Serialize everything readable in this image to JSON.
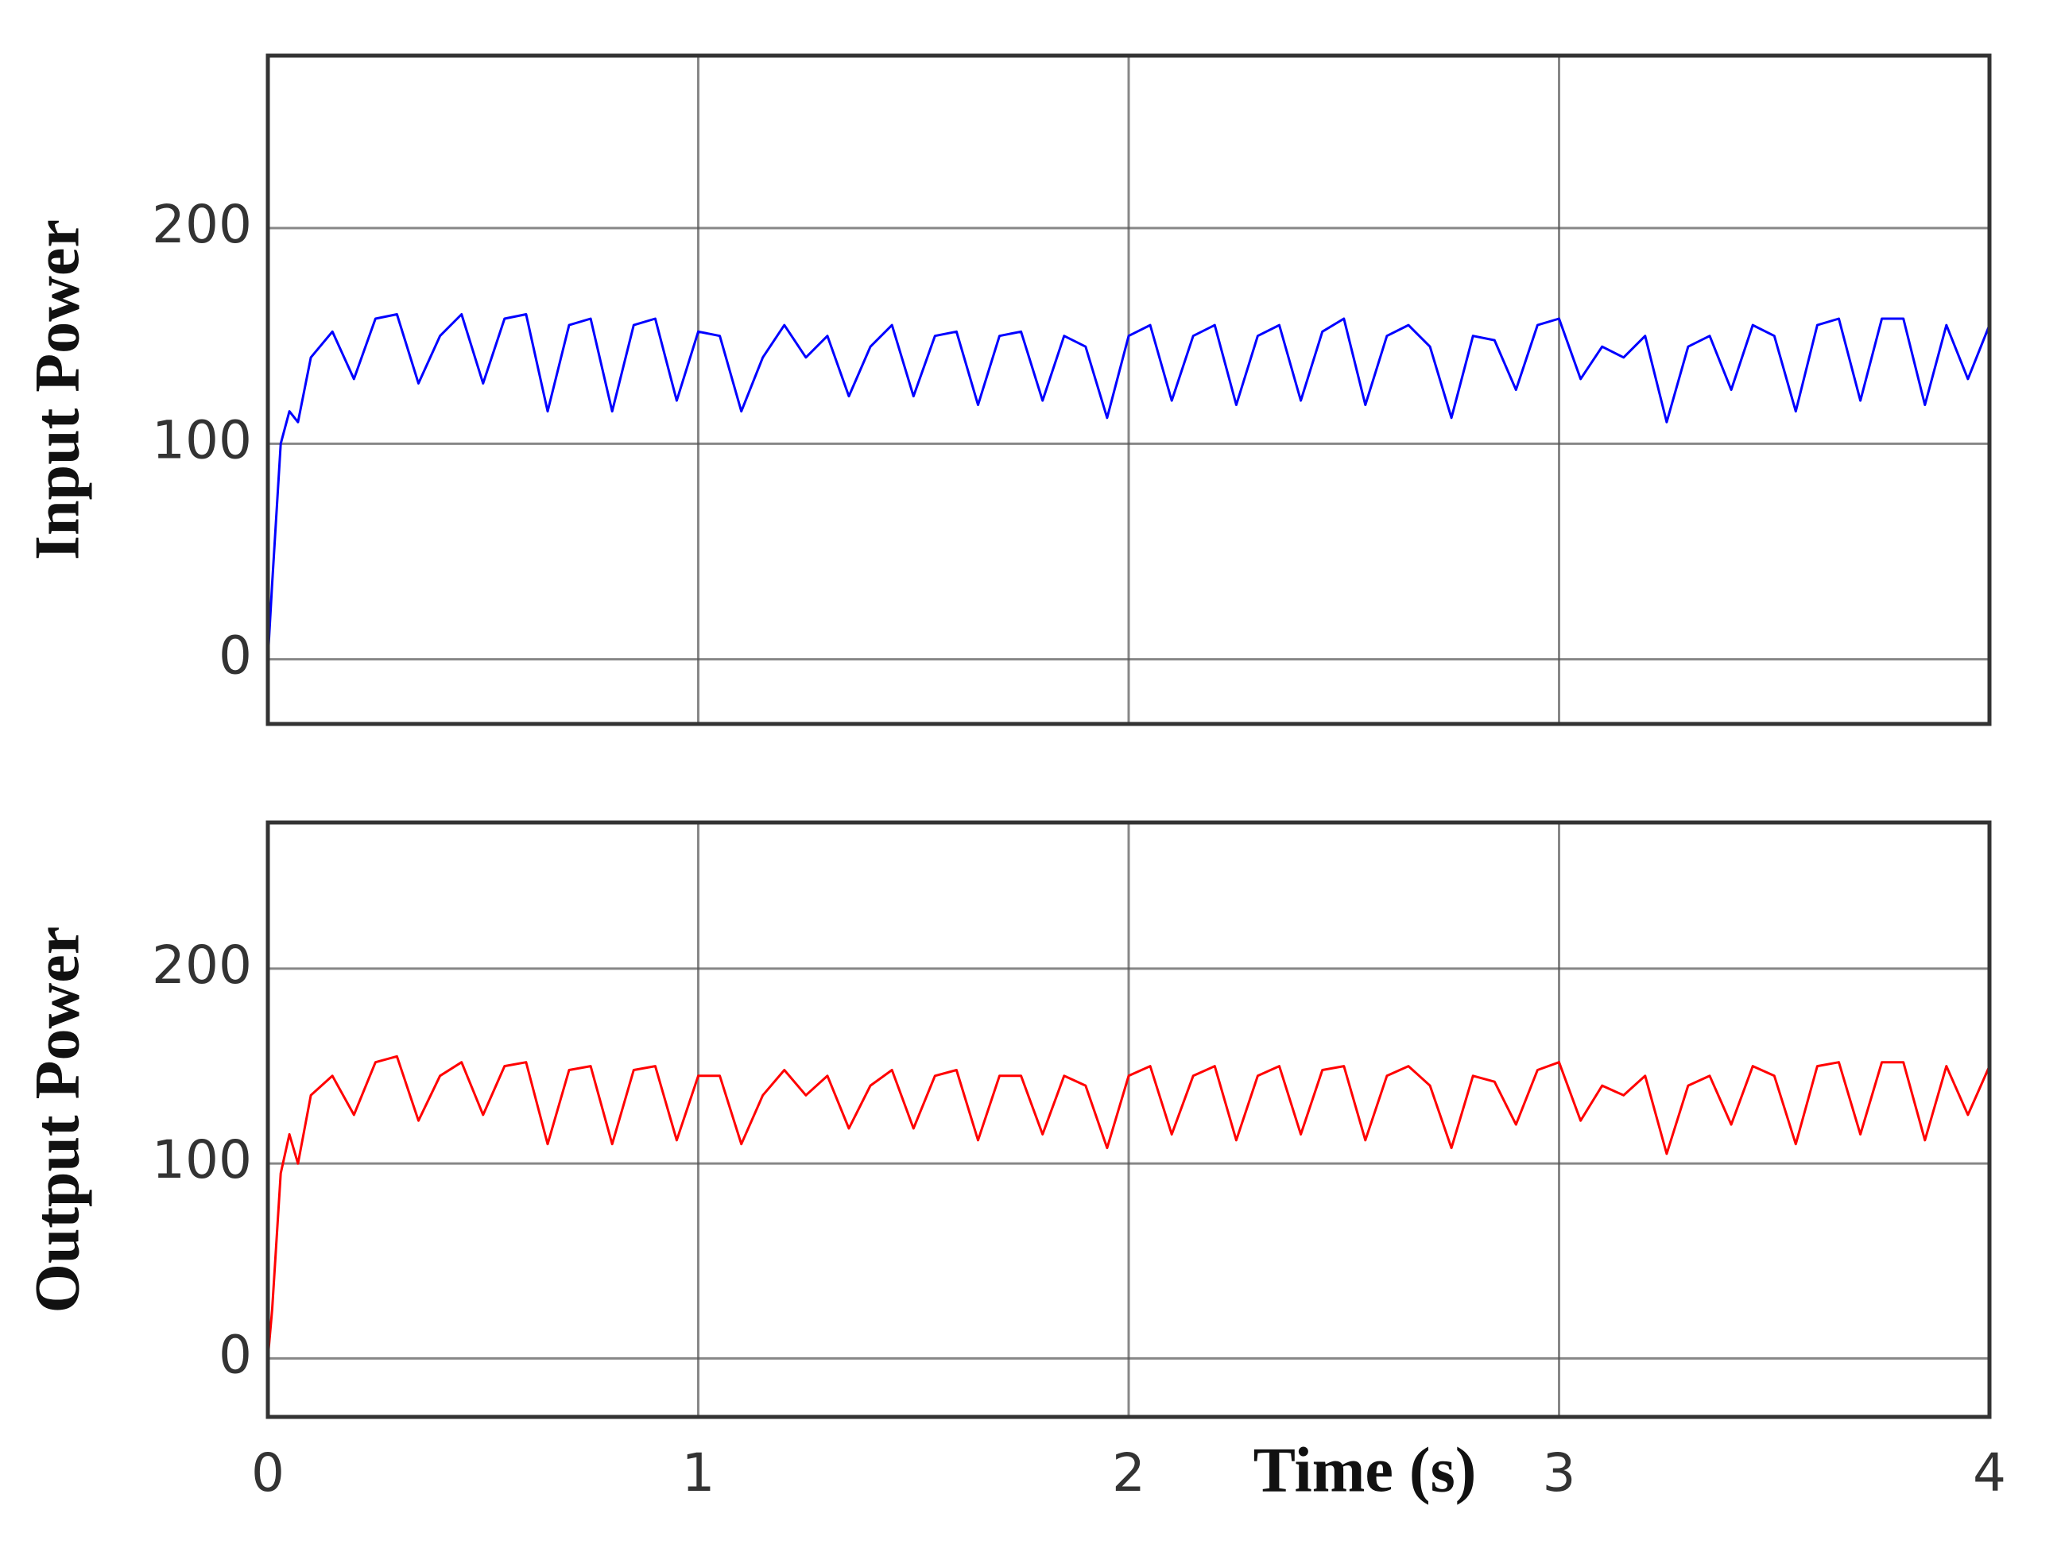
{
  "chart_data": [
    {
      "type": "line",
      "ylabel": "Input Power",
      "color": "#0000ff",
      "xlim": [
        0,
        4
      ],
      "ylim": [
        -30,
        280
      ],
      "yticks": [
        0,
        100,
        200
      ],
      "xticks": [
        0,
        1,
        2,
        3,
        4
      ],
      "show_xtick_labels": false,
      "grid": true,
      "x": [
        0,
        0.01,
        0.03,
        0.05,
        0.07,
        0.1,
        0.15,
        0.2,
        0.25,
        0.3,
        0.35,
        0.4,
        0.45,
        0.5,
        0.55,
        0.6,
        0.65,
        0.7,
        0.75,
        0.8,
        0.85,
        0.9,
        0.95,
        1,
        1.05,
        1.1,
        1.15,
        1.2,
        1.25,
        1.3,
        1.35,
        1.4,
        1.45,
        1.5,
        1.55,
        1.6,
        1.65,
        1.7,
        1.75,
        1.8,
        1.85,
        1.9,
        1.95,
        2,
        2.05,
        2.1,
        2.15,
        2.2,
        2.25,
        2.3,
        2.35,
        2.4,
        2.45,
        2.5,
        2.55,
        2.6,
        2.65,
        2.7,
        2.75,
        2.8,
        2.85,
        2.9,
        2.95,
        3,
        3.05,
        3.1,
        3.15,
        3.2,
        3.25,
        3.3,
        3.35,
        3.4,
        3.45,
        3.5,
        3.55,
        3.6,
        3.65,
        3.7,
        3.75,
        3.8,
        3.85,
        3.9,
        3.95,
        4
      ],
      "values": [
        0,
        35,
        100,
        115,
        110,
        140,
        152,
        130,
        158,
        160,
        128,
        150,
        160,
        128,
        158,
        160,
        115,
        155,
        158,
        115,
        155,
        158,
        120,
        152,
        150,
        115,
        140,
        155,
        140,
        150,
        122,
        145,
        155,
        122,
        150,
        152,
        118,
        150,
        152,
        120,
        150,
        145,
        112,
        150,
        155,
        120,
        150,
        155,
        118,
        150,
        155,
        120,
        152,
        158,
        118,
        150,
        155,
        145,
        112,
        150,
        148,
        125,
        155,
        158,
        130,
        145,
        140,
        150,
        110,
        145,
        150,
        125,
        155,
        150,
        115,
        155,
        158,
        120,
        158,
        158,
        118,
        155,
        130,
        155
      ]
    },
    {
      "type": "line",
      "ylabel": "Output Power",
      "xlabel": "Time (s)",
      "color": "#ff0000",
      "xlim": [
        0,
        4
      ],
      "ylim": [
        -30,
        275
      ],
      "yticks": [
        0,
        100,
        200
      ],
      "xticks": [
        0,
        1,
        2,
        3,
        4
      ],
      "show_xtick_labels": true,
      "grid": true,
      "x": [
        0,
        0.01,
        0.03,
        0.05,
        0.07,
        0.1,
        0.15,
        0.2,
        0.25,
        0.3,
        0.35,
        0.4,
        0.45,
        0.5,
        0.55,
        0.6,
        0.65,
        0.7,
        0.75,
        0.8,
        0.85,
        0.9,
        0.95,
        1,
        1.05,
        1.1,
        1.15,
        1.2,
        1.25,
        1.3,
        1.35,
        1.4,
        1.45,
        1.5,
        1.55,
        1.6,
        1.65,
        1.7,
        1.75,
        1.8,
        1.85,
        1.9,
        1.95,
        2,
        2.05,
        2.1,
        2.15,
        2.2,
        2.25,
        2.3,
        2.35,
        2.4,
        2.45,
        2.5,
        2.55,
        2.6,
        2.65,
        2.7,
        2.75,
        2.8,
        2.85,
        2.9,
        2.95,
        3,
        3.05,
        3.1,
        3.15,
        3.2,
        3.25,
        3.3,
        3.35,
        3.4,
        3.45,
        3.5,
        3.55,
        3.6,
        3.65,
        3.7,
        3.75,
        3.8,
        3.85,
        3.9,
        3.95,
        4
      ],
      "values": [
        0,
        25,
        95,
        115,
        100,
        135,
        145,
        125,
        152,
        155,
        122,
        145,
        152,
        125,
        150,
        152,
        110,
        148,
        150,
        110,
        148,
        150,
        112,
        145,
        145,
        110,
        135,
        148,
        135,
        145,
        118,
        140,
        148,
        118,
        145,
        148,
        112,
        145,
        145,
        115,
        145,
        140,
        108,
        145,
        150,
        115,
        145,
        150,
        112,
        145,
        150,
        115,
        148,
        150,
        112,
        145,
        150,
        140,
        108,
        145,
        142,
        120,
        148,
        152,
        122,
        140,
        135,
        145,
        105,
        140,
        145,
        120,
        150,
        145,
        110,
        150,
        152,
        115,
        152,
        152,
        112,
        150,
        125,
        150
      ]
    }
  ]
}
